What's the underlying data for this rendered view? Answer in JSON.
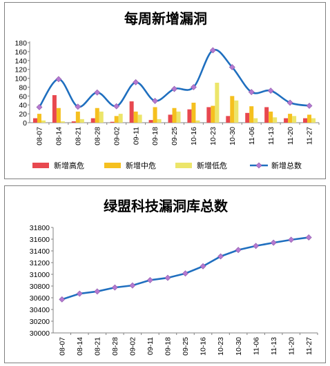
{
  "chart_data": [
    {
      "type": "bar",
      "title": "每周新增漏洞",
      "categories": [
        "08-07",
        "08-14",
        "08-21",
        "08-28",
        "09-02",
        "09-11",
        "09-18",
        "09-25",
        "10-16",
        "10-23",
        "10-30",
        "11-06",
        "11-13",
        "11-20",
        "11-27"
      ],
      "ylim": [
        0,
        180
      ],
      "yticks": [
        0,
        20,
        40,
        60,
        80,
        100,
        120,
        140,
        160,
        180
      ],
      "series": [
        {
          "name": "新增高危",
          "type": "bar",
          "color": "#e8484f",
          "values": [
            10,
            62,
            3,
            10,
            2,
            48,
            6,
            18,
            30,
            35,
            15,
            22,
            35,
            10,
            10
          ]
        },
        {
          "name": "新增中危",
          "type": "bar",
          "color": "#f5c01f",
          "values": [
            20,
            33,
            25,
            33,
            15,
            25,
            35,
            33,
            45,
            38,
            60,
            37,
            25,
            20,
            18
          ]
        },
        {
          "name": "新增低危",
          "type": "bar",
          "color": "#ece56a",
          "values": [
            5,
            3,
            8,
            25,
            20,
            18,
            8,
            25,
            5,
            90,
            50,
            10,
            12,
            15,
            10
          ]
        },
        {
          "name": "新增总数",
          "type": "line",
          "color": "#1f6fbf",
          "marker_color": "#b57ad1",
          "values": [
            35,
            98,
            36,
            68,
            37,
            91,
            49,
            76,
            80,
            163,
            125,
            69,
            72,
            45,
            38
          ]
        }
      ],
      "legend": "bottom",
      "grid": false
    },
    {
      "type": "line",
      "title": "绿盟科技漏洞库总数",
      "categories": [
        "08-07",
        "08-14",
        "08-21",
        "08-28",
        "09-02",
        "09-11",
        "09-18",
        "09-25",
        "10-16",
        "10-23",
        "10-30",
        "11-06",
        "11-13",
        "11-20",
        "11-27"
      ],
      "ylim": [
        30000,
        31800
      ],
      "yticks": [
        30000,
        30200,
        30400,
        30600,
        30800,
        31000,
        31200,
        31400,
        31600,
        31800
      ],
      "series": [
        {
          "color": "#1f6fbf",
          "marker_color": "#b57ad1",
          "values": [
            30572,
            30670,
            30708,
            30775,
            30810,
            30901,
            30940,
            31015,
            31138,
            31306,
            31416,
            31485,
            31540,
            31590,
            31630
          ]
        }
      ],
      "grid": false
    }
  ]
}
